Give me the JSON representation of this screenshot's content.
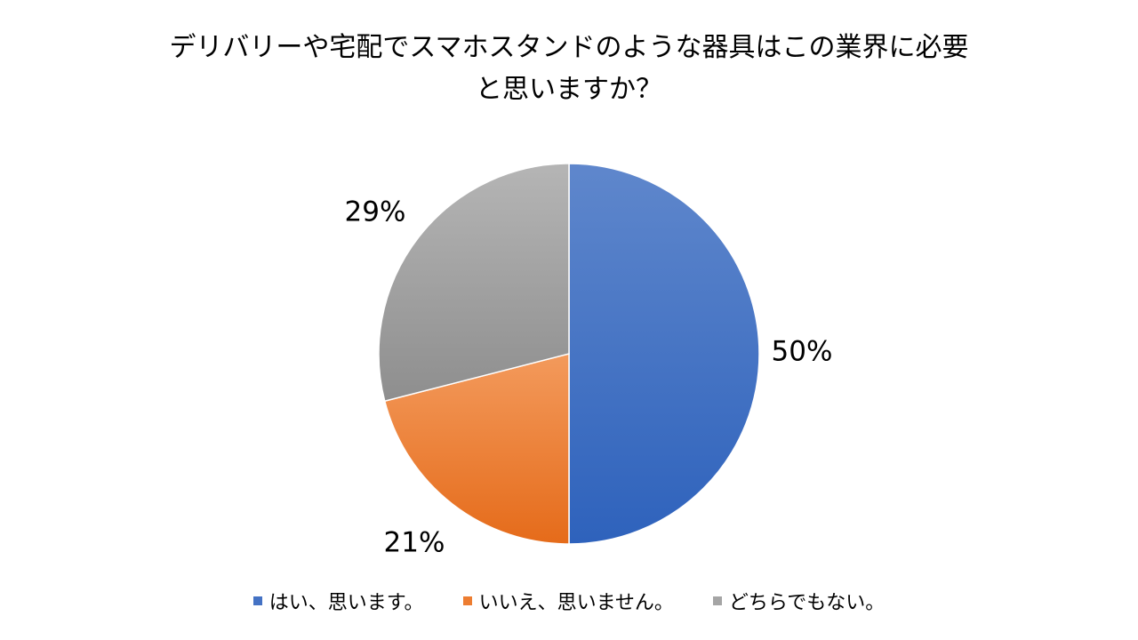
{
  "chart_data": {
    "type": "pie",
    "title_lines": [
      "デリバリーや宅配でスマホスタンドのような器具はこの業界に必要",
      "と思いますか？"
    ],
    "categories": [
      "はい、思います。",
      "いいえ、思いません。",
      "どちらでもない。"
    ],
    "values": [
      50,
      21,
      29
    ],
    "data_labels": [
      "50%",
      "21%",
      "29%"
    ],
    "colors": [
      "#4472C4",
      "#ED7D31",
      "#A5A5A5"
    ],
    "legend_position": "bottom"
  }
}
